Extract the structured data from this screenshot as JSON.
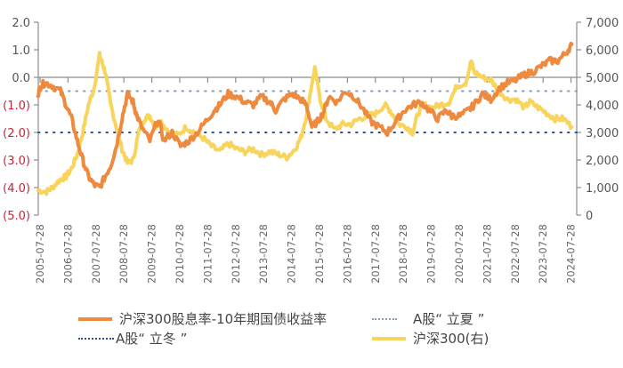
{
  "chart_data": {
    "type": "line",
    "title": "",
    "xlabel": "",
    "ylabel_left": "",
    "ylabel_right": "",
    "x_tick_labels": [
      "2005-07-28",
      "2006-07-28",
      "2007-07-28",
      "2008-07-28",
      "2009-07-28",
      "2010-07-28",
      "2011-07-28",
      "2012-07-28",
      "2013-07-28",
      "2014-07-28",
      "2015-07-28",
      "2016-07-28",
      "2017-07-28",
      "2018-07-28",
      "2019-07-28",
      "2020-07-28",
      "2021-07-28",
      "2022-07-28",
      "2023-07-28",
      "2024-07-28"
    ],
    "y_left": {
      "range": [
        -5.0,
        2.0
      ],
      "tick_labels": [
        "2.0",
        "1.0",
        "0.0",
        "(1.0)",
        "(2.0)",
        "(3.0)",
        "(4.0)",
        "(5.0)"
      ],
      "tick_values": [
        2,
        1,
        0,
        -1,
        -2,
        -3,
        -4,
        -5
      ],
      "negative_color": "#c0283a",
      "positive_color": "#555555"
    },
    "y_right": {
      "range": [
        0,
        7000
      ],
      "tick_labels": [
        "7,000",
        "6,000",
        "5,000",
        "4,000",
        "3,000",
        "2,000",
        "1,000",
        "0"
      ],
      "tick_values": [
        7000,
        6000,
        5000,
        4000,
        3000,
        2000,
        1000,
        0
      ]
    },
    "reference_lines": [
      {
        "name": "A股“立夏”",
        "value": -0.5,
        "axis": "left",
        "style": "dotted",
        "color": "#8a9bb5"
      },
      {
        "name": "A股“立冬”",
        "value": -2.0,
        "axis": "left",
        "style": "dotted",
        "color": "#2d4f8f"
      }
    ],
    "series": [
      {
        "name": "沪深300股息率-10年期国债收益率",
        "axis": "left",
        "color": "#ee8a3f",
        "x": [
          2005.5,
          2005.6,
          2005.75,
          2006.0,
          2006.3,
          2006.5,
          2006.7,
          2006.9,
          2007.1,
          2007.3,
          2007.5,
          2007.7,
          2007.9,
          2008.1,
          2008.3,
          2008.5,
          2008.7,
          2008.9,
          2009.0,
          2009.2,
          2009.5,
          2009.8,
          2010.0,
          2010.3,
          2010.6,
          2010.9,
          2011.2,
          2011.5,
          2011.8,
          2012.0,
          2012.3,
          2012.6,
          2012.9,
          2013.2,
          2013.5,
          2013.8,
          2014.0,
          2014.3,
          2014.6,
          2014.9,
          2015.1,
          2015.3,
          2015.5,
          2015.7,
          2015.9,
          2016.2,
          2016.5,
          2016.8,
          2017.1,
          2017.4,
          2017.7,
          2018.0,
          2018.3,
          2018.6,
          2018.9,
          2019.2,
          2019.5,
          2019.8,
          2020.1,
          2020.3,
          2020.6,
          2020.9,
          2021.1,
          2021.4,
          2021.7,
          2022.0,
          2022.3,
          2022.6,
          2022.9,
          2023.2,
          2023.5,
          2023.8,
          2024.1,
          2024.4,
          2024.6
        ],
        "values": [
          -0.6,
          -0.3,
          -0.2,
          -0.3,
          -0.5,
          -1.0,
          -1.5,
          -2.3,
          -3.0,
          -3.6,
          -3.9,
          -4.0,
          -3.6,
          -3.2,
          -2.5,
          -1.5,
          -0.6,
          -0.9,
          -1.3,
          -1.8,
          -2.3,
          -1.5,
          -2.3,
          -2.0,
          -2.5,
          -2.3,
          -2.0,
          -1.6,
          -1.2,
          -1.0,
          -0.6,
          -0.7,
          -0.9,
          -1.0,
          -0.7,
          -0.9,
          -1.2,
          -0.8,
          -0.6,
          -0.8,
          -1.0,
          -1.8,
          -1.6,
          -1.3,
          -0.7,
          -0.9,
          -0.5,
          -0.7,
          -1.1,
          -1.6,
          -1.8,
          -2.0,
          -1.6,
          -1.2,
          -1.0,
          -0.9,
          -1.2,
          -1.5,
          -1.2,
          -1.4,
          -1.4,
          -1.2,
          -1.0,
          -0.6,
          -0.8,
          -0.4,
          -0.2,
          -0.1,
          0.1,
          0.2,
          0.4,
          0.6,
          0.6,
          0.9,
          1.2
        ]
      },
      {
        "name": "沪深300(右)",
        "axis": "right",
        "color": "#f8d45c",
        "x": [
          2005.5,
          2005.8,
          2006.0,
          2006.3,
          2006.5,
          2006.7,
          2006.9,
          2007.1,
          2007.3,
          2007.5,
          2007.7,
          2007.8,
          2007.9,
          2008.1,
          2008.3,
          2008.5,
          2008.7,
          2008.9,
          2009.1,
          2009.3,
          2009.5,
          2009.7,
          2009.9,
          2010.2,
          2010.5,
          2010.8,
          2011.1,
          2011.4,
          2011.7,
          2012.0,
          2012.3,
          2012.6,
          2012.9,
          2013.2,
          2013.5,
          2013.8,
          2014.1,
          2014.4,
          2014.7,
          2014.9,
          2015.1,
          2015.3,
          2015.4,
          2015.6,
          2015.8,
          2016.1,
          2016.4,
          2016.7,
          2017.0,
          2017.3,
          2017.6,
          2017.9,
          2018.1,
          2018.4,
          2018.7,
          2018.9,
          2019.1,
          2019.3,
          2019.6,
          2019.9,
          2020.2,
          2020.5,
          2020.8,
          2021.0,
          2021.1,
          2021.4,
          2021.7,
          2022.0,
          2022.3,
          2022.6,
          2022.9,
          2023.1,
          2023.4,
          2023.7,
          2024.0,
          2024.3,
          2024.6
        ],
        "values": [
          900,
          850,
          1000,
          1300,
          1400,
          1700,
          2200,
          3000,
          4000,
          4600,
          5800,
          5500,
          5200,
          4000,
          3200,
          2400,
          1900,
          2000,
          3000,
          3500,
          3600,
          3200,
          3400,
          3000,
          2900,
          3200,
          3000,
          2800,
          2500,
          2300,
          2600,
          2400,
          2300,
          2400,
          2200,
          2300,
          2200,
          2100,
          2400,
          2800,
          3600,
          4800,
          5300,
          4200,
          3500,
          3100,
          3300,
          3300,
          3500,
          3600,
          3700,
          4000,
          3800,
          3300,
          3200,
          3000,
          3700,
          4000,
          3900,
          4000,
          4100,
          4700,
          4800,
          5600,
          5200,
          5000,
          4900,
          4500,
          4200,
          4200,
          3900,
          4100,
          3900,
          3700,
          3500,
          3500,
          3200
        ]
      }
    ],
    "legend": {
      "position": "bottom",
      "items": [
        {
          "label": "沪深300股息率-10年期国债收益率",
          "style": "line",
          "color": "#ee8a3f"
        },
        {
          "label": "A股“立夏”",
          "style": "dotted",
          "color": "#8a9bb5"
        },
        {
          "label": "A股“立冬”",
          "style": "dotted",
          "color": "#2d4f8f"
        },
        {
          "label": "沪深300(右)",
          "style": "line",
          "color": "#f8d45c"
        }
      ]
    },
    "grid": false
  },
  "legend": {
    "item1": "沪深300股息率-10年期国债收益率",
    "item2": "A股“ 立夏 ”",
    "item3": "A股“ 立冬 ”",
    "item4": "沪深300(右)"
  }
}
